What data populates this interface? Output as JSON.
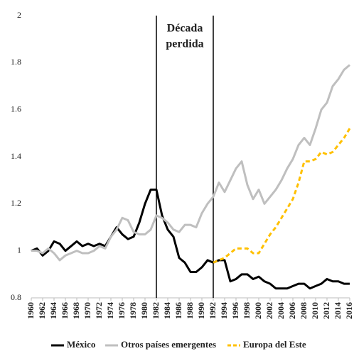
{
  "chart_data": {
    "type": "line",
    "x": [
      1960,
      1961,
      1962,
      1963,
      1964,
      1965,
      1966,
      1967,
      1968,
      1969,
      1970,
      1971,
      1972,
      1973,
      1974,
      1975,
      1976,
      1977,
      1978,
      1979,
      1980,
      1981,
      1982,
      1983,
      1984,
      1985,
      1986,
      1987,
      1988,
      1989,
      1990,
      1991,
      1992,
      1993,
      1994,
      1995,
      1996,
      1997,
      1998,
      1999,
      2000,
      2001,
      2002,
      2003,
      2004,
      2005,
      2006,
      2007,
      2008,
      2009,
      2010,
      2011,
      2012,
      2013,
      2014,
      2015,
      2016
    ],
    "series": [
      {
        "name": "México",
        "color": "#000000",
        "style": "solid",
        "values": [
          1.0,
          1.01,
          0.98,
          1.0,
          1.04,
          1.03,
          1.0,
          1.02,
          1.04,
          1.02,
          1.03,
          1.02,
          1.03,
          1.02,
          1.06,
          1.1,
          1.07,
          1.05,
          1.06,
          1.12,
          1.2,
          1.26,
          1.26,
          1.15,
          1.09,
          1.06,
          0.97,
          0.95,
          0.91,
          0.91,
          0.93,
          0.96,
          0.95,
          0.96,
          0.96,
          0.87,
          0.88,
          0.9,
          0.9,
          0.88,
          0.89,
          0.87,
          0.86,
          0.84,
          0.84,
          0.84,
          0.85,
          0.86,
          0.86,
          0.84,
          0.85,
          0.86,
          0.88,
          0.87,
          0.87,
          0.86,
          0.86
        ]
      },
      {
        "name": "Otros países emergentes",
        "color": "#bfbfbf",
        "style": "solid",
        "values": [
          1.0,
          1.0,
          0.99,
          1.01,
          0.99,
          0.96,
          0.98,
          0.99,
          1.0,
          0.99,
          0.99,
          1.0,
          1.02,
          1.01,
          1.06,
          1.09,
          1.14,
          1.13,
          1.08,
          1.07,
          1.07,
          1.09,
          1.15,
          1.14,
          1.12,
          1.09,
          1.08,
          1.11,
          1.11,
          1.1,
          1.16,
          1.2,
          1.23,
          1.29,
          1.25,
          1.3,
          1.35,
          1.38,
          1.28,
          1.22,
          1.26,
          1.2,
          1.23,
          1.26,
          1.3,
          1.35,
          1.39,
          1.45,
          1.48,
          1.45,
          1.52,
          1.6,
          1.63,
          1.7,
          1.73,
          1.77,
          1.79
        ]
      },
      {
        "name": "Europa del Este",
        "color": "#ffc000",
        "style": "dashed",
        "values": [
          null,
          null,
          null,
          null,
          null,
          null,
          null,
          null,
          null,
          null,
          null,
          null,
          null,
          null,
          null,
          null,
          null,
          null,
          null,
          null,
          null,
          null,
          null,
          null,
          null,
          null,
          null,
          null,
          null,
          null,
          null,
          null,
          0.95,
          0.96,
          0.97,
          0.99,
          1.01,
          1.01,
          1.01,
          0.99,
          0.99,
          1.03,
          1.07,
          1.1,
          1.14,
          1.18,
          1.22,
          1.29,
          1.38,
          1.38,
          1.39,
          1.42,
          1.41,
          1.42,
          1.45,
          1.48,
          1.52
        ]
      }
    ],
    "xlim": [
      1960,
      2016
    ],
    "xticks": [
      1960,
      1962,
      1964,
      1966,
      1968,
      1970,
      1972,
      1974,
      1976,
      1978,
      1980,
      1982,
      1984,
      1986,
      1988,
      1990,
      1992,
      1994,
      1996,
      1998,
      2000,
      2002,
      2004,
      2006,
      2008,
      2010,
      2012,
      2014,
      2016
    ],
    "ylim": [
      0.8,
      2
    ],
    "yticks": [
      0.8,
      1,
      1.2,
      1.4,
      1.6,
      1.8,
      2
    ],
    "vlines": [
      1982,
      1992
    ],
    "annotation": [
      "Década",
      "perdida"
    ],
    "grid": false,
    "legend": "bottom"
  }
}
